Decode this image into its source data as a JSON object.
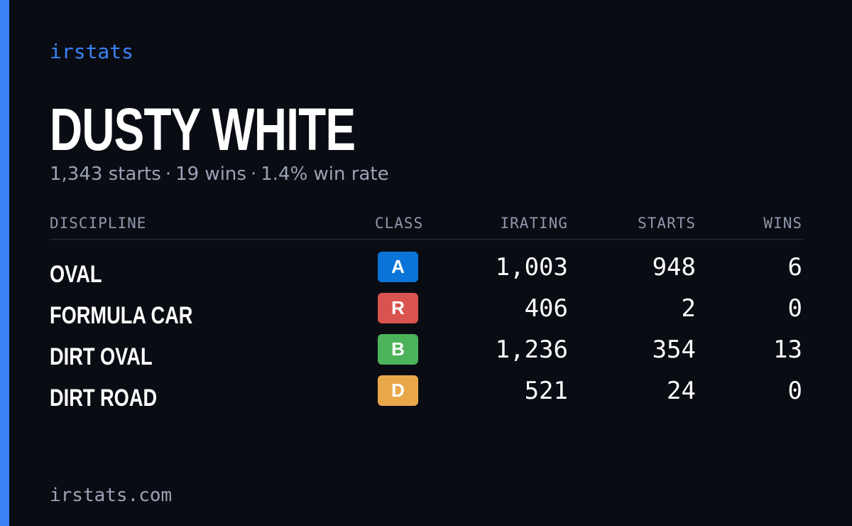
{
  "brand": "irstats",
  "driver": {
    "name": "DUSTY WHITE"
  },
  "summary": {
    "starts": "1,343 starts",
    "wins": "19 wins",
    "win_rate": "1.4% win rate",
    "separator": "·"
  },
  "table": {
    "headers": {
      "discipline": "DISCIPLINE",
      "class": "CLASS",
      "irating": "IRATING",
      "starts": "STARTS",
      "wins": "WINS"
    },
    "rows": [
      {
        "discipline": "OVAL",
        "class": "A",
        "class_color": "#0b74d9",
        "irating": "1,003",
        "starts": "948",
        "wins": "6"
      },
      {
        "discipline": "FORMULA CAR",
        "class": "R",
        "class_color": "#d9534f",
        "irating": "406",
        "starts": "2",
        "wins": "0"
      },
      {
        "discipline": "DIRT OVAL",
        "class": "B",
        "class_color": "#4cb35a",
        "irating": "1,236",
        "starts": "354",
        "wins": "13"
      },
      {
        "discipline": "DIRT ROAD",
        "class": "D",
        "class_color": "#e8a84a",
        "irating": "521",
        "starts": "24",
        "wins": "0"
      }
    ]
  },
  "footer": {
    "url": "irstats.com"
  },
  "colors": {
    "accent": "#3b82f6",
    "background": "#0a0c13"
  }
}
